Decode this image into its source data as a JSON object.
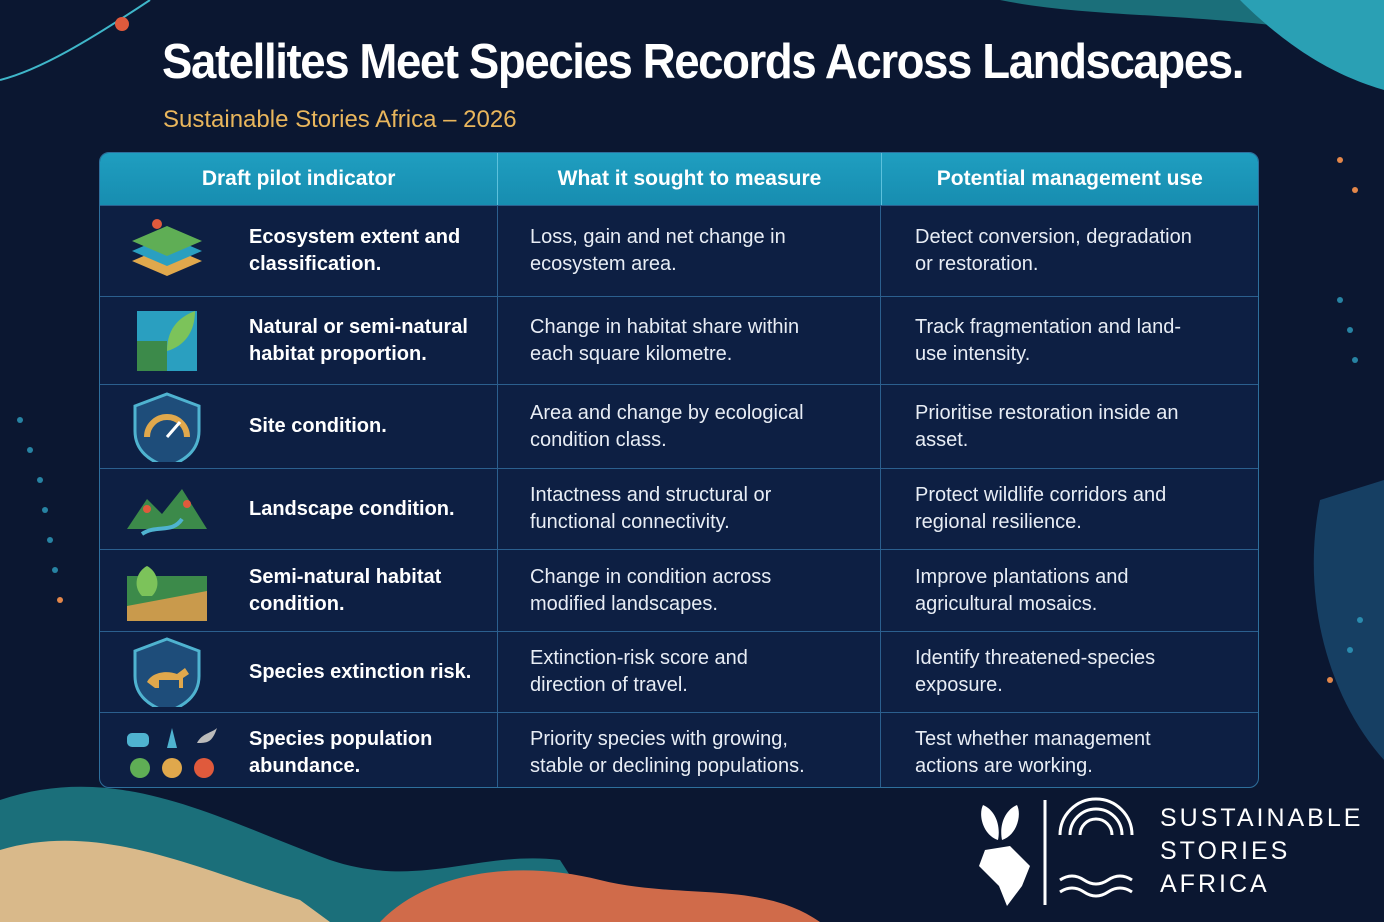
{
  "header": {
    "title": "Satellites Meet Species Records Across Landscapes.",
    "subtitle": "Sustainable Stories Africa – 2026"
  },
  "table": {
    "columns": [
      "Draft pilot indicator",
      "What it sought to measure",
      "Potential management use"
    ],
    "rows": [
      [
        "Ecosystem extent and classification.",
        "Loss, gain and net change in ecosystem area.",
        "Detect conversion, degradation or restoration."
      ],
      [
        "Natural or semi-natural habitat proportion.",
        "Change in habitat share within each square kilometre.",
        "Track fragmentation and land-use intensity."
      ],
      [
        "Site condition.",
        "Area and change by ecological condition class.",
        "Prioritise restoration inside an asset."
      ],
      [
        "Landscape condition.",
        "Intactness and structural or functional connectivity.",
        "Protect wildlife corridors and regional resilience."
      ],
      [
        "Semi-natural habitat condition.",
        "Change in condition across modified landscapes.",
        "Improve plantations and agricultural mosaics."
      ],
      [
        "Species extinction risk.",
        "Extinction-risk score and direction of travel.",
        "Identify threatened-species exposure."
      ],
      [
        "Species population abundance.",
        "Priority species with growing, stable or declining populations.",
        "Test whether management actions are working."
      ]
    ]
  },
  "logo": {
    "lines": [
      "SUSTAINABLE",
      "STORIES",
      "AFRICA"
    ]
  }
}
